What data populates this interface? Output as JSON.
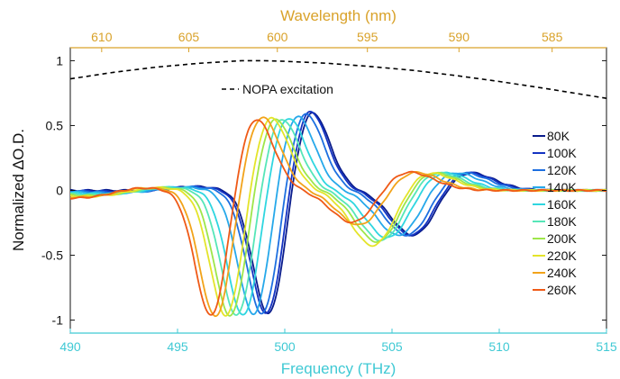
{
  "chart_data": {
    "type": "line",
    "xlabel": "Frequency (THz)",
    "ylabel": "Normalized ∆O.D.",
    "top_xlabel": "Wavelength (nm)",
    "xlim": [
      490,
      515
    ],
    "ylim": [
      -1.1,
      1.1
    ],
    "x_ticks": [
      490,
      495,
      500,
      505,
      510,
      515
    ],
    "y_ticks": [
      1,
      0.5,
      0,
      -0.5,
      -1
    ],
    "y_tick_labels": [
      "1",
      "0.5",
      "0",
      "-0.5",
      "-1"
    ],
    "top_ticks_nm": [
      610,
      605,
      600,
      595,
      590,
      585
    ],
    "grid": false,
    "legend_position": "right",
    "colors": {
      "bottom_axis": "#3fc9d4",
      "top_axis": "#d9a22a",
      "left_axis": "#111111"
    },
    "excitation": {
      "label": "NOPA excitation",
      "style": "dashed",
      "color": "#000000",
      "x": [
        490,
        492,
        494,
        496,
        498,
        499,
        500,
        502,
        504,
        506,
        508,
        510,
        512,
        515
      ],
      "y": [
        0.86,
        0.91,
        0.95,
        0.98,
        1.0,
        1.0,
        0.995,
        0.98,
        0.955,
        0.925,
        0.885,
        0.84,
        0.79,
        0.71
      ]
    },
    "series": [
      {
        "name": "80K",
        "color": "#0a1c8c",
        "center": 499.3,
        "min_x": 499.3,
        "max_x": 501.2,
        "min_y": -1.0,
        "max_y": 0.63,
        "dip_x": 506.1,
        "dip_y": -0.38
      },
      {
        "name": "100K",
        "color": "#1433c2",
        "center": 499.2,
        "min_x": 499.2,
        "max_x": 501.1,
        "min_y": -1.0,
        "max_y": 0.64,
        "dip_x": 506.0,
        "dip_y": -0.38
      },
      {
        "name": "120K",
        "color": "#1d6fe0",
        "center": 499.0,
        "min_x": 499.0,
        "max_x": 500.9,
        "min_y": -1.0,
        "max_y": 0.62,
        "dip_x": 505.8,
        "dip_y": -0.38
      },
      {
        "name": "140K",
        "color": "#26a8ea",
        "center": 498.6,
        "min_x": 498.6,
        "max_x": 500.5,
        "min_y": -1.0,
        "max_y": 0.6,
        "dip_x": 505.4,
        "dip_y": -0.38
      },
      {
        "name": "160K",
        "color": "#2fd6e0",
        "center": 498.1,
        "min_x": 498.1,
        "max_x": 500.1,
        "min_y": -1.0,
        "max_y": 0.58,
        "dip_x": 504.9,
        "dip_y": -0.4
      },
      {
        "name": "180K",
        "color": "#56e6b8",
        "center": 497.8,
        "min_x": 497.8,
        "max_x": 499.8,
        "min_y": -1.0,
        "max_y": 0.57,
        "dip_x": 504.6,
        "dip_y": -0.42
      },
      {
        "name": "200K",
        "color": "#9ee64a",
        "center": 497.5,
        "min_x": 497.5,
        "max_x": 499.5,
        "min_y": -1.0,
        "max_y": 0.57,
        "dip_x": 504.4,
        "dip_y": -0.43
      },
      {
        "name": "220K",
        "color": "#e4e42a",
        "center": 497.3,
        "min_x": 497.3,
        "max_x": 499.3,
        "min_y": -1.0,
        "max_y": 0.58,
        "dip_x": 504.2,
        "dip_y": -0.46
      },
      {
        "name": "240K",
        "color": "#f2a31a",
        "center": 496.8,
        "min_x": 496.8,
        "max_x": 498.9,
        "min_y": -1.0,
        "max_y": 0.58,
        "dip_x": 503.6,
        "dip_y": -0.3
      },
      {
        "name": "260K",
        "color": "#ef5a17",
        "center": 496.6,
        "min_x": 496.6,
        "max_x": 498.6,
        "min_y": -1.0,
        "max_y": 0.57,
        "dip_x": 503.3,
        "dip_y": -0.28
      }
    ]
  }
}
